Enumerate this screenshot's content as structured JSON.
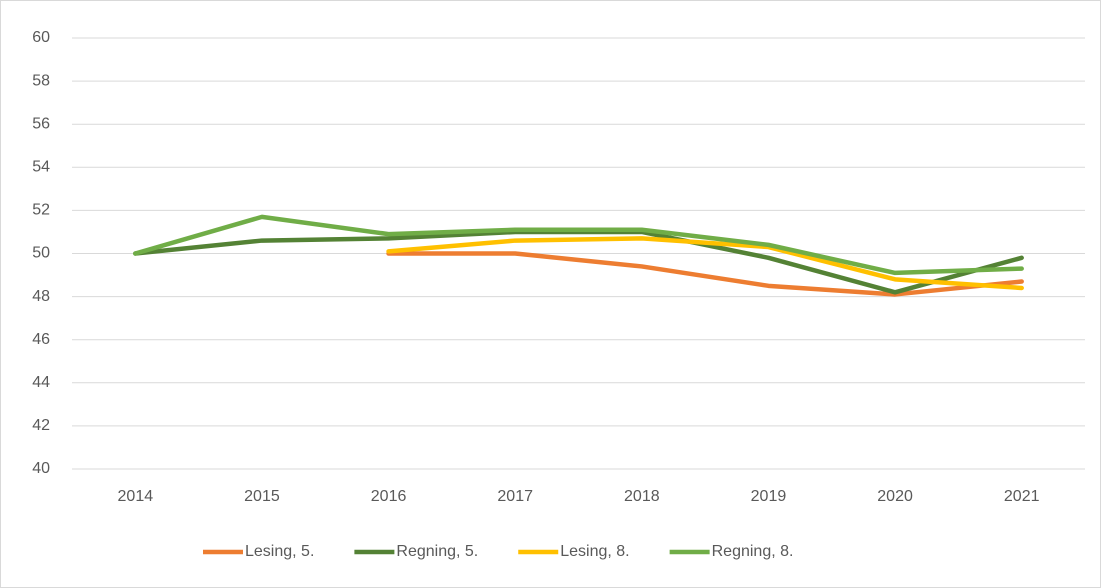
{
  "chart_data": {
    "type": "line",
    "categories": [
      "2014",
      "2015",
      "2016",
      "2017",
      "2018",
      "2019",
      "2020",
      "2021"
    ],
    "series": [
      {
        "name": "Lesing, 5.",
        "color": "#ed7d31",
        "values": [
          null,
          null,
          50.0,
          50.0,
          49.4,
          48.5,
          48.1,
          48.7
        ]
      },
      {
        "name": "Regning, 5.",
        "color": "#548235",
        "values": [
          50.0,
          50.6,
          50.7,
          51.0,
          51.0,
          49.8,
          48.2,
          49.8
        ]
      },
      {
        "name": "Lesing, 8.",
        "color": "#ffc000",
        "values": [
          null,
          null,
          50.1,
          50.6,
          50.7,
          50.3,
          48.8,
          48.4
        ]
      },
      {
        "name": "Regning, 8.",
        "color": "#70ad47",
        "values": [
          50.0,
          51.7,
          50.9,
          51.1,
          51.1,
          50.4,
          49.1,
          49.3
        ]
      }
    ],
    "ylim": [
      40,
      60
    ],
    "yticks": [
      40,
      42,
      44,
      46,
      48,
      50,
      52,
      54,
      56,
      58,
      60
    ],
    "grid": true,
    "legend": "bottom"
  }
}
